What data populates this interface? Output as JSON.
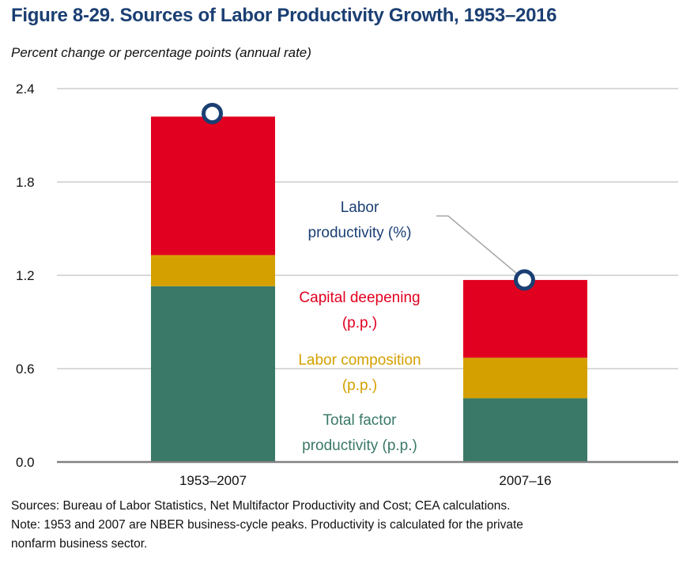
{
  "header": {
    "title": "Figure 8-29. Sources of Labor Productivity Growth, 1953–2016",
    "subtitle": "Percent change or percentage points (annual rate)"
  },
  "footer": {
    "sources": "Sources: Bureau of Labor Statistics, Net Multifactor Productivity and Cost; CEA calculations.",
    "note_line1": "Note: 1953 and 2007 are NBER business-cycle peaks. Productivity is calculated for the private",
    "note_line2": "nonfarm business sector."
  },
  "chart_data": {
    "type": "bar",
    "stacked": true,
    "title": "Figure 8-29. Sources of Labor Productivity Growth, 1953–2016",
    "subtitle": "Percent change or percentage points (annual rate)",
    "xlabel": "",
    "ylabel": "Percent change or percentage points (annual rate)",
    "categories": [
      "1953–2007",
      "2007–16"
    ],
    "ylim": [
      0,
      2.4
    ],
    "yticks": [
      0.0,
      0.6,
      1.2,
      1.8,
      2.4
    ],
    "ytick_labels": [
      "0.0",
      "0.6",
      "1.2",
      "1.8",
      "2.4"
    ],
    "grid": true,
    "series": [
      {
        "name": "Total factor productivity (p.p.)",
        "label_lines": [
          "Total factor",
          "productivity (p.p.)"
        ],
        "color": "#3A7868",
        "values": [
          1.13,
          0.41
        ]
      },
      {
        "name": "Labor composition (p.p.)",
        "label_lines": [
          "Labor composition",
          "(p.p.)"
        ],
        "color": "#D4A000",
        "values": [
          0.2,
          0.26
        ]
      },
      {
        "name": "Capital deepening (p.p.)",
        "label_lines": [
          "Capital deepening",
          "(p.p.)"
        ],
        "color": "#E10020",
        "values": [
          0.89,
          0.5
        ]
      }
    ],
    "markers": {
      "name": "Labor productivity (%)",
      "label_lines": [
        "Labor",
        "productivity (%)"
      ],
      "color": "#1B3F73",
      "values": [
        2.24,
        1.17
      ]
    },
    "legend": "inline-annotations-between-bars"
  }
}
